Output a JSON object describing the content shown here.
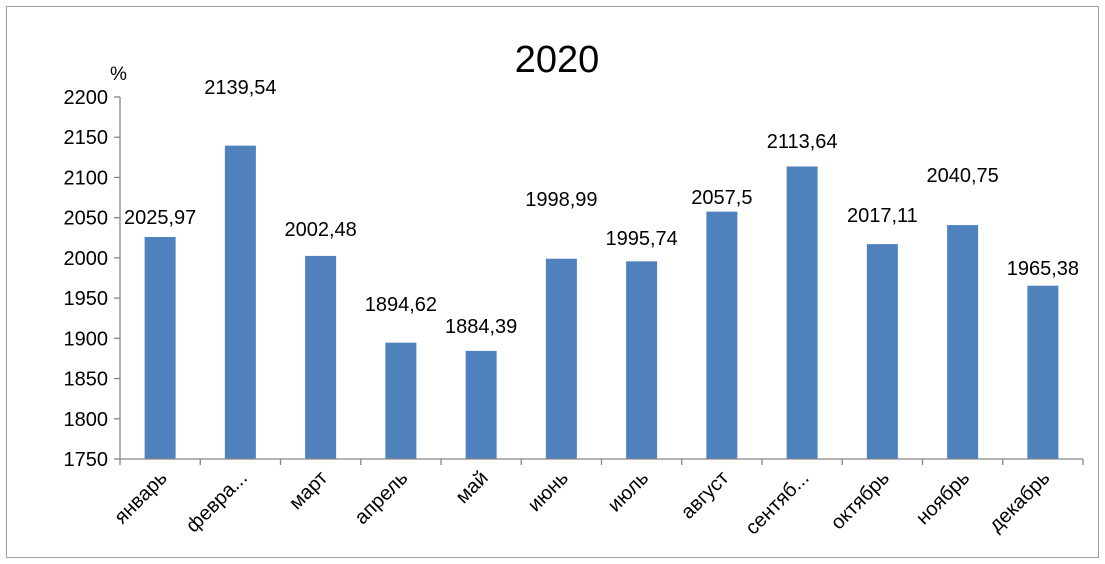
{
  "chart_data": {
    "type": "bar",
    "title": "2020",
    "ylabel": "%",
    "xlabel": "",
    "ylim": [
      1750,
      2200
    ],
    "ytick_step": 50,
    "grid": false,
    "legend": "none",
    "bar_color": "#4f81bd",
    "categories": [
      "январь",
      "февра...",
      "март",
      "апрель",
      "май",
      "июнь",
      "июль",
      "август",
      "сентяб...",
      "октябрь",
      "ноябрь",
      "декабрь"
    ],
    "values": [
      2025.97,
      2139.54,
      2002.48,
      1894.62,
      1884.39,
      1998.99,
      1995.74,
      2057.5,
      2113.64,
      2017.11,
      2040.75,
      1965.38
    ],
    "data_labels": [
      "2025,97",
      "2139,54",
      "2002,48",
      "1894,62",
      "1884,39",
      "1998,99",
      "1995,74",
      "2057,5",
      "2113,64",
      "2017,11",
      "2040,75",
      "1965,38"
    ]
  }
}
